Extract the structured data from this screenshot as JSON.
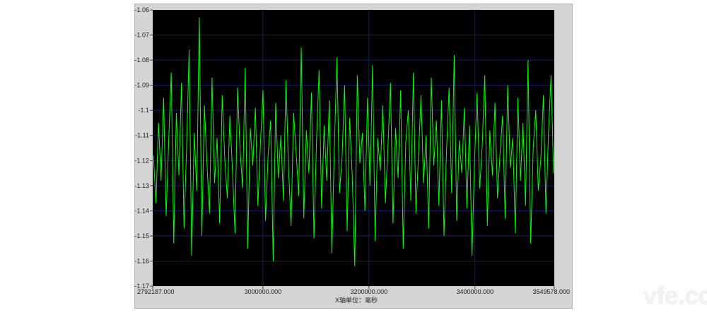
{
  "chart_data": {
    "type": "line",
    "title": "",
    "xlabel": "X轴单位：毫秒",
    "ylabel": "",
    "xlim": [
      2792187.0,
      3549578.0
    ],
    "ylim": [
      -1.17,
      -1.06
    ],
    "x_ticks": [
      "2792187.000",
      "3000000.000",
      "3200000.000",
      "3400000.000",
      "3549578.000"
    ],
    "x_tick_values": [
      2792187,
      3000000,
      3200000,
      3400000,
      3549578
    ],
    "y_ticks": [
      "-1.06",
      "-1.07",
      "-1.08",
      "-1.09",
      "-1.1",
      "-1.11",
      "-1.12",
      "-1.13",
      "-1.14",
      "-1.15",
      "-1.16",
      "-1.17"
    ],
    "y_tick_values": [
      -1.06,
      -1.07,
      -1.08,
      -1.09,
      -1.1,
      -1.11,
      -1.12,
      -1.13,
      -1.14,
      -1.15,
      -1.16,
      -1.17
    ],
    "grid": true,
    "series": [
      {
        "color": "#00ff00",
        "values": [
          -1.118,
          -1.137,
          -1.105,
          -1.128,
          -1.095,
          -1.142,
          -1.112,
          -1.085,
          -1.153,
          -1.101,
          -1.126,
          -1.089,
          -1.147,
          -1.115,
          -1.076,
          -1.158,
          -1.109,
          -1.132,
          -1.063,
          -1.15,
          -1.098,
          -1.121,
          -1.141,
          -1.087,
          -1.129,
          -1.111,
          -1.145,
          -1.094,
          -1.119,
          -1.135,
          -1.102,
          -1.124,
          -1.149,
          -1.091,
          -1.116,
          -1.131,
          -1.083,
          -1.155,
          -1.107,
          -1.122,
          -1.099,
          -1.138,
          -1.113,
          -1.092,
          -1.144,
          -1.118,
          -1.104,
          -1.16,
          -1.097,
          -1.127,
          -1.11,
          -1.136,
          -1.088,
          -1.123,
          -1.146,
          -1.101,
          -1.117,
          -1.134,
          -1.075,
          -1.143,
          -1.108,
          -1.125,
          -1.093,
          -1.151,
          -1.112,
          -1.084,
          -1.139,
          -1.106,
          -1.128,
          -1.096,
          -1.157,
          -1.114,
          -1.079,
          -1.133,
          -1.119,
          -1.09,
          -1.148,
          -1.103,
          -1.126,
          -1.162,
          -1.086,
          -1.121,
          -1.109,
          -1.14,
          -1.095,
          -1.13,
          -1.082,
          -1.152,
          -1.111,
          -1.124,
          -1.098,
          -1.137,
          -1.115,
          -1.089,
          -1.145,
          -1.107,
          -1.127,
          -1.092,
          -1.155,
          -1.113,
          -1.1,
          -1.136,
          -1.085,
          -1.141,
          -1.118,
          -1.094,
          -1.129,
          -1.11,
          -1.147,
          -1.087,
          -1.122,
          -1.104,
          -1.138,
          -1.096,
          -1.15,
          -1.116,
          -1.091,
          -1.133,
          -1.078,
          -1.144,
          -1.112,
          -1.125,
          -1.099,
          -1.139,
          -1.106,
          -1.158,
          -1.12,
          -1.093,
          -1.131,
          -1.114,
          -1.086,
          -1.146,
          -1.108,
          -1.126,
          -1.097,
          -1.135,
          -1.117,
          -1.102,
          -1.143,
          -1.09,
          -1.123,
          -1.111,
          -1.149,
          -1.095,
          -1.128,
          -1.105,
          -1.138,
          -1.08,
          -1.153,
          -1.115,
          -1.1,
          -1.132,
          -1.119,
          -1.094,
          -1.141,
          -1.109,
          -1.086,
          -1.125
        ]
      }
    ]
  },
  "watermark": "vfe.cc"
}
